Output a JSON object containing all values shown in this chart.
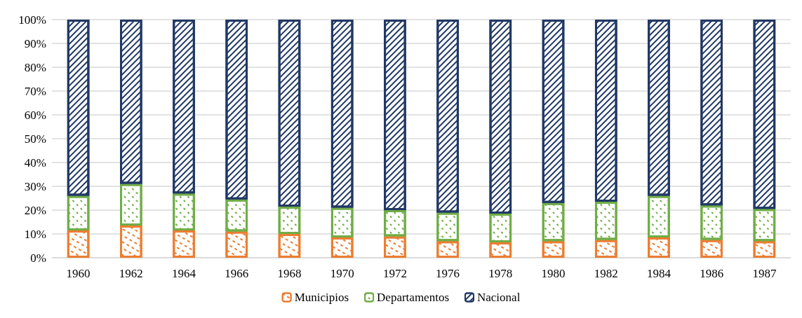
{
  "chart_data": {
    "type": "bar",
    "stacked": true,
    "categories": [
      "1960",
      "1962",
      "1964",
      "1966",
      "1968",
      "1970",
      "1972",
      "1976",
      "1978",
      "1980",
      "1982",
      "1984",
      "1986",
      "1987"
    ],
    "series": [
      {
        "name": "Municipios",
        "color": "#ed7d31",
        "values": [
          11.5,
          13.5,
          11.5,
          11,
          10,
          8.5,
          9,
          7,
          6.5,
          7,
          7.5,
          8.5,
          7.5,
          7
        ]
      },
      {
        "name": "Departamentos",
        "color": "#70ad47",
        "values": [
          14.5,
          17.5,
          15.5,
          13.5,
          11.5,
          12.5,
          11,
          12,
          12,
          16,
          16,
          17.5,
          14.5,
          13.5
        ]
      },
      {
        "name": "Nacional",
        "color": "#203864",
        "values": [
          74,
          69,
          73,
          75.5,
          78.5,
          79,
          80,
          81,
          81.5,
          77,
          76.5,
          74,
          78,
          79.5
        ]
      }
    ],
    "ylim": [
      0,
      100
    ],
    "yticks": [
      {
        "value": 0,
        "label": "0%"
      },
      {
        "value": 10,
        "label": "10%"
      },
      {
        "value": 20,
        "label": "20%"
      },
      {
        "value": 30,
        "label": "30%"
      },
      {
        "value": 40,
        "label": "40%"
      },
      {
        "value": 50,
        "label": "50%"
      },
      {
        "value": 60,
        "label": "60%"
      },
      {
        "value": 70,
        "label": "70%"
      },
      {
        "value": 80,
        "label": "80%"
      },
      {
        "value": 90,
        "label": "90%"
      },
      {
        "value": 100,
        "label": "100%"
      }
    ],
    "grid": "y",
    "legend": "bottom"
  }
}
